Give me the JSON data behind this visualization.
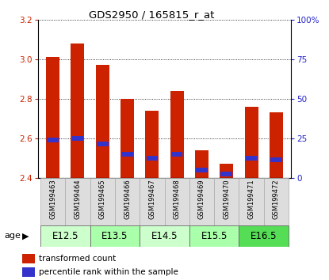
{
  "title": "GDS2950 / 165815_r_at",
  "samples": [
    "GSM199463",
    "GSM199464",
    "GSM199465",
    "GSM199466",
    "GSM199467",
    "GSM199468",
    "GSM199469",
    "GSM199470",
    "GSM199471",
    "GSM199472"
  ],
  "red_values": [
    3.01,
    3.08,
    2.97,
    2.8,
    2.74,
    2.84,
    2.54,
    2.47,
    2.76,
    2.73
  ],
  "blue_values": [
    2.59,
    2.6,
    2.57,
    2.52,
    2.5,
    2.52,
    2.44,
    2.42,
    2.5,
    2.49
  ],
  "ymin": 2.4,
  "ymax": 3.2,
  "yticks": [
    2.4,
    2.6,
    2.8,
    3.0,
    3.2
  ],
  "right_yticks": [
    0,
    25,
    50,
    75,
    100
  ],
  "right_yticklabels": [
    "0",
    "25",
    "50",
    "75",
    "100%"
  ],
  "bar_color_red": "#cc2200",
  "bar_color_blue": "#3333cc",
  "age_groups": [
    {
      "label": "E12.5",
      "start": 0,
      "end": 2,
      "color": "#ccffcc"
    },
    {
      "label": "E13.5",
      "start": 2,
      "end": 4,
      "color": "#aaffaa"
    },
    {
      "label": "E14.5",
      "start": 4,
      "end": 6,
      "color": "#ccffcc"
    },
    {
      "label": "E15.5",
      "start": 6,
      "end": 8,
      "color": "#aaffaa"
    },
    {
      "label": "E16.5",
      "start": 8,
      "end": 10,
      "color": "#55dd55"
    }
  ],
  "bar_width": 0.55,
  "blue_bar_height": 0.025,
  "grid_color": "#000000",
  "bg_color": "#ffffff",
  "plot_bg": "#ffffff",
  "left_label_color": "#cc2200",
  "right_label_color": "#2222cc",
  "sample_box_color": "#dddddd",
  "sample_box_edge": "#aaaaaa"
}
